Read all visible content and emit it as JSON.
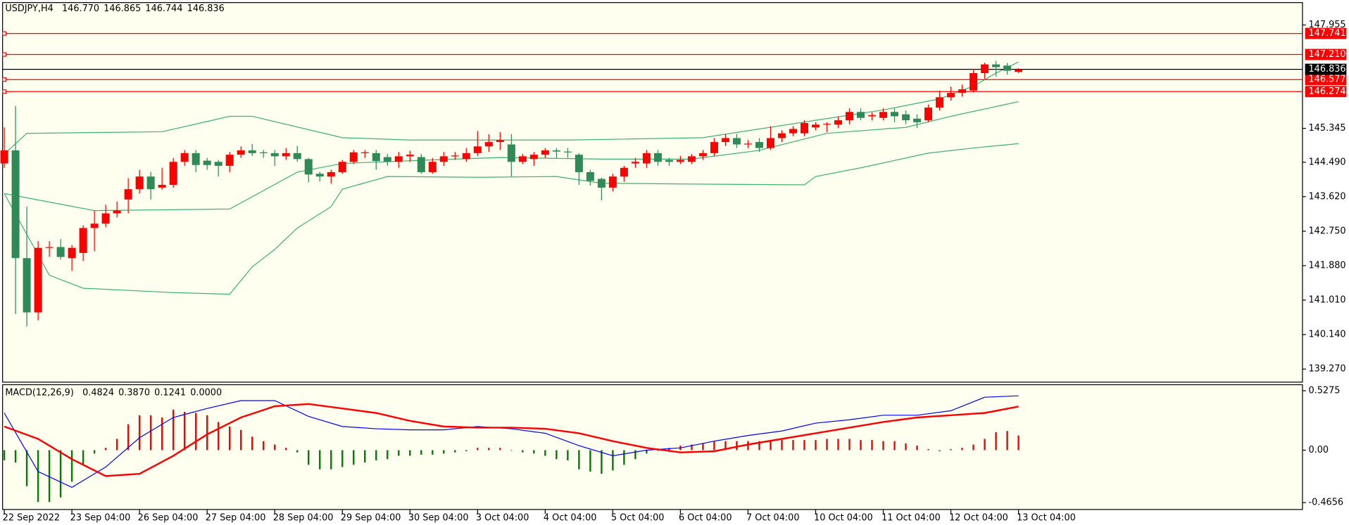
{
  "chart_data": [
    {
      "type": "candlestick",
      "title": "USDJPY,H4",
      "info_labels": [
        "146.770",
        "146.865",
        "146.744",
        "146.836"
      ],
      "open": [
        144.46,
        144.79,
        142.07,
        140.7,
        142.33,
        142.35,
        142.07,
        142.2,
        142.83,
        142.94,
        143.2,
        143.55,
        143.81,
        144.13,
        143.85,
        143.92,
        144.5,
        144.72,
        144.53,
        144.5,
        144.4,
        144.68,
        144.79,
        144.74,
        144.72,
        144.64,
        144.72,
        144.57,
        144.2,
        144.13,
        144.24,
        144.5,
        144.72,
        144.72,
        144.62,
        144.5,
        144.64,
        144.62,
        144.24,
        144.5,
        144.64,
        144.57,
        144.72,
        144.89,
        145.0,
        144.94,
        144.5,
        144.57,
        144.68,
        144.79,
        144.76,
        144.68,
        144.24,
        144.07,
        143.85,
        144.13,
        144.46,
        144.46,
        144.72,
        144.55,
        144.5,
        144.5,
        144.64,
        144.72,
        145.0,
        145.1,
        144.94,
        145.0,
        144.85,
        145.1,
        145.22,
        145.22,
        145.37,
        145.44,
        145.44,
        145.55,
        145.76,
        145.65,
        145.61,
        145.76,
        145.7,
        145.59,
        145.55,
        145.87,
        146.13,
        146.24,
        146.3,
        146.74,
        146.96,
        146.93,
        146.77
      ],
      "high": [
        145.37,
        145.91,
        143.37,
        142.5,
        142.5,
        142.55,
        142.4,
        142.9,
        143.27,
        143.42,
        143.5,
        144.09,
        144.3,
        144.25,
        144.35,
        144.6,
        144.8,
        144.8,
        144.6,
        144.55,
        144.75,
        144.89,
        144.95,
        144.8,
        144.8,
        144.85,
        144.9,
        144.6,
        144.25,
        144.3,
        144.55,
        144.8,
        144.8,
        144.8,
        144.7,
        144.75,
        144.78,
        144.7,
        144.6,
        144.75,
        144.75,
        144.85,
        145.28,
        145.2,
        145.25,
        145.2,
        144.7,
        144.75,
        144.85,
        144.85,
        144.85,
        144.72,
        144.3,
        144.1,
        144.2,
        144.4,
        144.6,
        144.8,
        144.8,
        144.6,
        144.65,
        144.7,
        144.8,
        145.1,
        145.2,
        145.2,
        145.05,
        145.1,
        145.4,
        145.3,
        145.4,
        145.55,
        145.5,
        145.5,
        145.65,
        145.85,
        145.85,
        145.75,
        145.85,
        145.85,
        145.8,
        145.7,
        145.95,
        146.3,
        146.4,
        146.45,
        146.85,
        147.0,
        147.05,
        147.0,
        146.865
      ],
      "low": [
        144.35,
        140.66,
        140.34,
        140.5,
        142.1,
        142.03,
        141.75,
        142.0,
        142.24,
        142.85,
        143.1,
        143.2,
        143.7,
        143.55,
        143.8,
        143.85,
        144.4,
        144.24,
        144.3,
        144.13,
        144.24,
        144.6,
        144.65,
        144.6,
        144.4,
        144.55,
        144.5,
        143.98,
        144.0,
        143.95,
        144.2,
        144.45,
        144.6,
        144.3,
        144.4,
        144.35,
        144.5,
        144.2,
        144.2,
        144.4,
        144.55,
        144.5,
        144.65,
        144.75,
        144.8,
        144.13,
        144.45,
        144.4,
        144.6,
        144.6,
        144.6,
        143.92,
        143.9,
        143.53,
        143.75,
        144.0,
        144.35,
        144.35,
        144.4,
        144.4,
        144.45,
        144.45,
        144.55,
        144.65,
        144.9,
        144.85,
        144.85,
        144.75,
        144.8,
        145.0,
        145.15,
        145.15,
        145.3,
        145.25,
        145.35,
        145.45,
        145.55,
        145.55,
        145.55,
        145.5,
        145.45,
        145.35,
        145.5,
        145.8,
        146.05,
        146.15,
        146.25,
        146.6,
        146.65,
        146.7,
        146.744
      ],
      "close": [
        144.79,
        142.07,
        140.7,
        142.33,
        142.35,
        142.1,
        142.33,
        142.83,
        142.94,
        143.2,
        143.27,
        143.81,
        144.13,
        143.81,
        143.92,
        144.5,
        144.72,
        144.42,
        144.42,
        144.4,
        144.68,
        144.79,
        144.72,
        144.72,
        144.64,
        144.72,
        144.57,
        144.18,
        144.13,
        144.24,
        144.5,
        144.74,
        144.74,
        144.52,
        144.5,
        144.64,
        144.68,
        144.24,
        144.5,
        144.64,
        144.66,
        144.72,
        144.89,
        145.0,
        145.05,
        144.5,
        144.64,
        144.68,
        144.79,
        144.76,
        144.74,
        144.24,
        144.02,
        143.85,
        144.13,
        144.35,
        144.5,
        144.72,
        144.5,
        144.5,
        144.55,
        144.64,
        144.72,
        145.0,
        145.1,
        144.94,
        144.96,
        144.85,
        145.1,
        145.22,
        145.33,
        145.48,
        145.44,
        145.46,
        145.55,
        145.76,
        145.61,
        145.68,
        145.76,
        145.65,
        145.55,
        145.5,
        145.87,
        146.13,
        146.24,
        146.33,
        146.74,
        146.96,
        146.89,
        146.8,
        146.836
      ],
      "up_color": "#ff0000",
      "down_color": "#2e8b57",
      "bands": [
        {
          "color": "#3cb371",
          "x": [
            0,
            2,
            14,
            20,
            22,
            30,
            36,
            50,
            62,
            72,
            78,
            83,
            86,
            88,
            90
          ],
          "values": [
            144.7,
            145.22,
            145.26,
            145.65,
            145.65,
            145.11,
            145.05,
            145.05,
            145.11,
            145.55,
            145.81,
            146.09,
            146.41,
            146.74,
            147.02
          ]
        },
        {
          "color": "#3cb371",
          "x": [
            0,
            8,
            20,
            26,
            30,
            38,
            44,
            53,
            61,
            67,
            73,
            80,
            84,
            90
          ],
          "values": [
            143.7,
            143.27,
            143.31,
            144.24,
            144.46,
            144.55,
            144.61,
            144.57,
            144.57,
            144.79,
            145.22,
            145.37,
            145.65,
            146.02
          ]
        },
        {
          "color": "#3cb371",
          "x": [
            0,
            4,
            7,
            15,
            20,
            22,
            24,
            26,
            29,
            30,
            34,
            42,
            49,
            53,
            61,
            71,
            72,
            76,
            82,
            86,
            90
          ],
          "values": [
            143.7,
            141.64,
            141.31,
            141.2,
            141.16,
            141.85,
            142.29,
            142.83,
            143.37,
            143.81,
            144.13,
            144.11,
            144.13,
            143.96,
            143.94,
            143.92,
            144.13,
            144.35,
            144.72,
            144.85,
            144.96
          ]
        }
      ],
      "levels": [
        {
          "value": 147.741,
          "label": "147.741",
          "color": "#ff0000"
        },
        {
          "value": 147.21,
          "label": "147.210",
          "color": "#ff0000"
        },
        {
          "value": 146.577,
          "label": "146.577",
          "color": "#ff0000"
        },
        {
          "value": 146.274,
          "label": "146.274",
          "color": "#ff0000"
        }
      ],
      "price_line": {
        "value": 146.836,
        "label": "146.836",
        "color": "#000000"
      },
      "xlim": [
        -0.15,
        115.2
      ],
      "ylim": [
        138.94,
        148.52
      ],
      "yticks": [
        {
          "value": 147.955,
          "label": "147.955"
        },
        {
          "value": 145.345,
          "label": "145.345"
        },
        {
          "value": 144.49,
          "label": "144.490"
        },
        {
          "value": 143.62,
          "label": "143.620"
        },
        {
          "value": 142.75,
          "label": "142.750"
        },
        {
          "value": 141.88,
          "label": "141.880"
        },
        {
          "value": 141.01,
          "label": "141.010"
        },
        {
          "value": 140.14,
          "label": "140.140"
        },
        {
          "value": 139.27,
          "label": "139.270"
        }
      ],
      "xticks": [
        {
          "value": 0,
          "label": "22 Sep 2022"
        },
        {
          "value": 6,
          "label": "23 Sep 04:00"
        },
        {
          "value": 12,
          "label": "26 Sep 04:00"
        },
        {
          "value": 18,
          "label": "27 Sep 04:00"
        },
        {
          "value": 24,
          "label": "28 Sep 04:00"
        },
        {
          "value": 30,
          "label": "29 Sep 04:00"
        },
        {
          "value": 36,
          "label": "30 Sep 04:00"
        },
        {
          "value": 42,
          "label": "3 Oct 04:00"
        },
        {
          "value": 48,
          "label": "4 Oct 04:00"
        },
        {
          "value": 54,
          "label": "5 Oct 04:00"
        },
        {
          "value": 60,
          "label": "6 Oct 04:00"
        },
        {
          "value": 66,
          "label": "7 Oct 04:00"
        },
        {
          "value": 72,
          "label": "10 Oct 04:00"
        },
        {
          "value": 78,
          "label": "11 Oct 04:00"
        },
        {
          "value": 84,
          "label": "12 Oct 04:00"
        },
        {
          "value": 90,
          "label": "13 Oct 04:00"
        }
      ]
    },
    {
      "type": "macd",
      "title": "MACD(12,26,9)",
      "info_labels": [
        "0.4824",
        "0.3870",
        "0.1241",
        "0.0000"
      ],
      "histogram": {
        "pos_color": "#ff0000",
        "neg_color": "#008000",
        "values": [
          -0.09,
          -0.11,
          -0.32,
          -0.46,
          -0.46,
          -0.42,
          -0.28,
          -0.13,
          -0.03,
          0.02,
          0.1,
          0.23,
          0.31,
          0.31,
          0.29,
          0.36,
          0.34,
          0.33,
          0.31,
          0.25,
          0.21,
          0.18,
          0.12,
          0.08,
          0.05,
          0.02,
          -0.02,
          -0.13,
          -0.17,
          -0.17,
          -0.15,
          -0.13,
          -0.11,
          -0.09,
          -0.08,
          -0.05,
          -0.05,
          -0.04,
          -0.04,
          -0.03,
          -0.02,
          -0.01,
          0.02,
          0.02,
          0.02,
          -0.005,
          -0.02,
          -0.03,
          -0.05,
          -0.08,
          -0.09,
          -0.17,
          -0.19,
          -0.21,
          -0.18,
          -0.13,
          -0.08,
          -0.03,
          -0.005,
          0.02,
          0.04,
          0.05,
          0.06,
          0.08,
          0.08,
          0.08,
          0.08,
          0.08,
          0.09,
          0.09,
          0.09,
          0.09,
          0.09,
          0.1,
          0.1,
          0.1,
          0.09,
          0.09,
          0.08,
          0.08,
          0.06,
          0.04,
          0.01,
          -0.01,
          0.01,
          0.02,
          0.05,
          0.1,
          0.16,
          0.17,
          0.13
        ]
      },
      "series": [
        {
          "color": "#0000ff",
          "width": 1,
          "x": [
            0,
            3,
            6,
            9,
            12,
            15,
            18,
            21,
            24,
            27,
            30,
            33,
            36,
            39,
            42,
            45,
            48,
            51,
            54,
            57,
            60,
            63,
            66,
            69,
            72,
            75,
            78,
            81,
            84,
            87,
            90
          ],
          "values": [
            0.33,
            -0.19,
            -0.33,
            -0.15,
            0.11,
            0.29,
            0.37,
            0.44,
            0.44,
            0.3,
            0.21,
            0.19,
            0.18,
            0.18,
            0.21,
            0.19,
            0.15,
            0.04,
            -0.05,
            0.0,
            0.02,
            0.08,
            0.13,
            0.17,
            0.24,
            0.27,
            0.31,
            0.31,
            0.35,
            0.47,
            0.4824
          ]
        },
        {
          "color": "#ff0000",
          "width": 2,
          "x": [
            0,
            3,
            6,
            9,
            12,
            15,
            18,
            21,
            24,
            27,
            30,
            33,
            36,
            39,
            42,
            45,
            48,
            51,
            54,
            57,
            60,
            63,
            66,
            69,
            72,
            75,
            78,
            81,
            84,
            87,
            90
          ],
          "values": [
            0.21,
            0.1,
            -0.08,
            -0.23,
            -0.21,
            -0.05,
            0.14,
            0.29,
            0.39,
            0.41,
            0.37,
            0.33,
            0.26,
            0.21,
            0.2,
            0.2,
            0.19,
            0.15,
            0.08,
            0.02,
            -0.02,
            -0.01,
            0.05,
            0.1,
            0.15,
            0.2,
            0.25,
            0.29,
            0.31,
            0.33,
            0.387
          ]
        }
      ],
      "ylim": [
        -0.527,
        0.581
      ],
      "yticks": [
        0.5275,
        {
          "value": 0,
          "label": "0.00"
        },
        -0.4656
      ]
    }
  ]
}
